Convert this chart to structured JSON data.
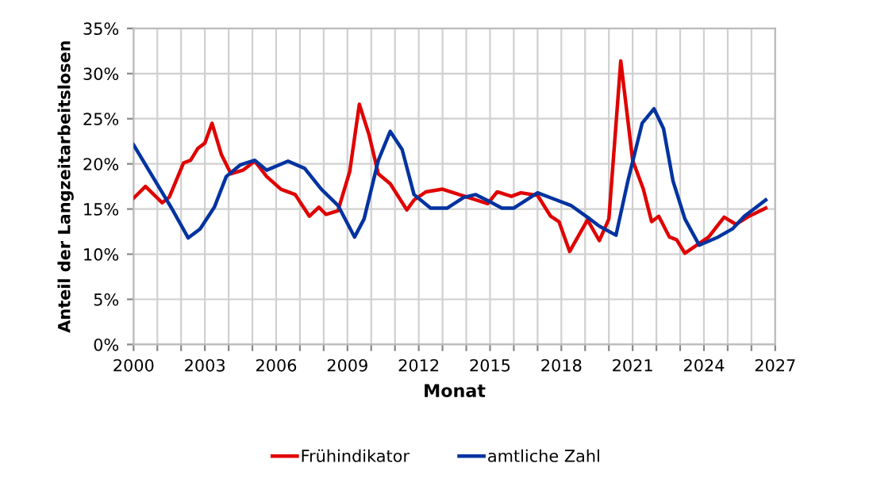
{
  "chart_data": {
    "type": "line",
    "xlabel": "Monat",
    "ylabel": "Anteil der Langzeitarbeitslosen",
    "xlim": [
      2000,
      2027
    ],
    "ylim": [
      0,
      35
    ],
    "xticks": [
      2000,
      {
        "value": 2001,
        "label": null
      },
      {
        "value": 2002,
        "label": null
      },
      2003,
      {
        "value": 2004,
        "label": null
      },
      {
        "value": 2005,
        "label": null
      },
      2006,
      {
        "value": 2007,
        "label": null
      },
      {
        "value": 2008,
        "label": null
      },
      2009,
      {
        "value": 2010,
        "label": null
      },
      {
        "value": 2011,
        "label": null
      },
      2012,
      {
        "value": 2013,
        "label": null
      },
      {
        "value": 2014,
        "label": null
      },
      2015,
      {
        "value": 2016,
        "label": null
      },
      {
        "value": 2017,
        "label": null
      },
      2018,
      {
        "value": 2019,
        "label": null
      },
      {
        "value": 2020,
        "label": null
      },
      2021,
      {
        "value": 2022,
        "label": null
      },
      {
        "value": 2023,
        "label": null
      },
      2024,
      {
        "value": 2025,
        "label": null
      },
      {
        "value": 2026,
        "label": null
      },
      2027
    ],
    "yticks": [
      {
        "value": 0,
        "label": "0%"
      },
      {
        "value": 5,
        "label": "5%"
      },
      {
        "value": 10,
        "label": "10%"
      },
      {
        "value": 15,
        "label": "15%"
      },
      {
        "value": 20,
        "label": "20%"
      },
      {
        "value": 25,
        "label": "25%"
      },
      {
        "value": 30,
        "label": "30%"
      },
      {
        "value": 35,
        "label": "35%"
      }
    ],
    "grid": true,
    "legend": "bottom",
    "marker": "none",
    "line_style": "solid",
    "series": [
      {
        "name": "Frühindikator",
        "color": "#e00000",
        "x": [
          2000.0,
          2000.5,
          2001.2,
          2001.5,
          2002.1,
          2002.4,
          2002.7,
          2003.0,
          2003.3,
          2003.7,
          2004.1,
          2004.6,
          2005.1,
          2005.6,
          2006.2,
          2006.8,
          2007.4,
          2007.8,
          2008.1,
          2008.6,
          2009.1,
          2009.5,
          2009.9,
          2010.3,
          2010.8,
          2011.5,
          2011.8,
          2012.3,
          2013.0,
          2013.7,
          2014.9,
          2015.3,
          2015.9,
          2016.3,
          2017.0,
          2017.55,
          2017.9,
          2018.35,
          2019.1,
          2019.6,
          2020.0,
          2020.5,
          2021.0,
          2021.45,
          2021.8,
          2022.1,
          2022.55,
          2022.85,
          2023.2,
          2023.7,
          2024.2,
          2024.85,
          2025.35,
          2025.9,
          2026.6
        ],
        "values": [
          16.2,
          17.5,
          15.7,
          16.3,
          20.1,
          20.4,
          21.7,
          22.3,
          24.5,
          21.0,
          18.9,
          19.3,
          20.3,
          18.6,
          17.2,
          16.6,
          14.2,
          15.2,
          14.4,
          14.8,
          19.2,
          26.6,
          23.3,
          18.9,
          17.8,
          14.9,
          16.0,
          16.9,
          17.2,
          16.6,
          15.6,
          16.9,
          16.4,
          16.8,
          16.5,
          14.2,
          13.6,
          10.3,
          13.8,
          11.5,
          13.9,
          31.4,
          20.4,
          17.2,
          13.6,
          14.2,
          11.9,
          11.6,
          10.1,
          11.0,
          11.9,
          14.1,
          13.3,
          14.2,
          15.1
        ]
      },
      {
        "name": "amtliche Zahl",
        "color": "#0033a0",
        "x": [
          2000.0,
          2000.8,
          2001.6,
          2002.3,
          2002.8,
          2003.4,
          2003.9,
          2004.5,
          2005.1,
          2005.6,
          2006.5,
          2007.2,
          2007.9,
          2008.6,
          2009.3,
          2009.7,
          2010.3,
          2010.8,
          2011.3,
          2011.8,
          2012.5,
          2013.2,
          2013.9,
          2014.4,
          2015.0,
          2015.5,
          2016.0,
          2017.0,
          2017.6,
          2018.4,
          2019.2,
          2019.6,
          2020.3,
          2020.8,
          2021.4,
          2021.9,
          2022.3,
          2022.7,
          2023.2,
          2023.8,
          2024.6,
          2025.2,
          2025.7,
          2026.6
        ],
        "values": [
          22.1,
          18.6,
          15.1,
          11.8,
          12.8,
          15.2,
          18.6,
          19.9,
          20.4,
          19.3,
          20.3,
          19.5,
          17.2,
          15.4,
          11.9,
          13.9,
          20.4,
          23.6,
          21.6,
          16.6,
          15.1,
          15.1,
          16.3,
          16.6,
          15.8,
          15.1,
          15.1,
          16.8,
          16.2,
          15.4,
          13.9,
          13.1,
          12.1,
          18.1,
          24.5,
          26.1,
          23.9,
          18.1,
          13.9,
          11.0,
          11.9,
          12.8,
          14.2,
          16.0
        ]
      }
    ]
  }
}
